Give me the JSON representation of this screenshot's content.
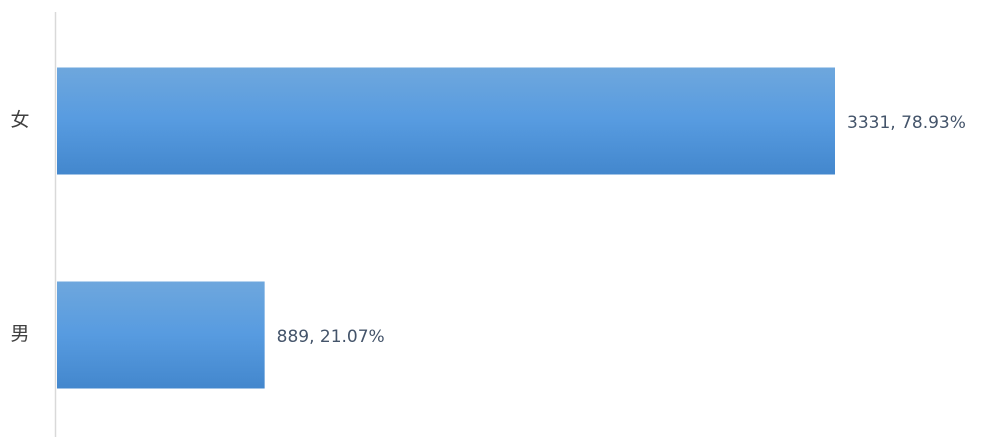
{
  "chart_data": {
    "type": "bar",
    "orientation": "horizontal",
    "categories": [
      "女",
      "男"
    ],
    "values": [
      3331,
      889
    ],
    "value_labels": [
      "3331, 78.93%",
      "889, 21.07%"
    ],
    "color": "#5b9bd5"
  }
}
